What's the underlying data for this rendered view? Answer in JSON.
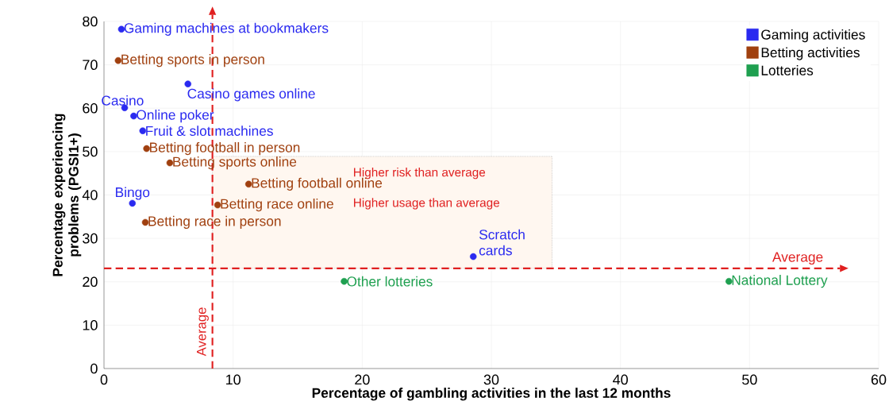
{
  "chart_data": {
    "type": "scatter",
    "xlabel": "Percentage of gambling activities in the last 12 months",
    "ylabel": "Percentage experiencing problems (PGSI1+)",
    "xlim": [
      0,
      60
    ],
    "ylim": [
      0,
      80
    ],
    "xticks": [
      0,
      10,
      20,
      30,
      40,
      50,
      60
    ],
    "yticks": [
      0,
      10,
      20,
      30,
      40,
      50,
      60,
      70,
      80
    ],
    "grid": true,
    "legend": "top right",
    "marker": "circle",
    "series": [
      {
        "name": "Gaming activities",
        "color": "#2a2af0",
        "x": [
          1.35,
          6.5,
          1.6,
          2.3,
          3.0,
          2.2,
          28.6
        ],
        "values": [
          78.2,
          65.6,
          60.1,
          58.2,
          54.8,
          38.1,
          25.8
        ],
        "value_labels": [
          "Gaming machines at bookmakers",
          "Casino games online",
          "Casino",
          "Online poker",
          "Fruit & slot machines",
          "Bingo",
          "Scratch cards"
        ]
      },
      {
        "name": "Betting activities",
        "color": "#a0400f",
        "x": [
          1.1,
          3.3,
          5.1,
          11.2,
          8.8,
          3.2
        ],
        "values": [
          71.0,
          50.7,
          47.4,
          42.5,
          37.7,
          33.7
        ],
        "value_labels": [
          "Betting sports in person",
          "Betting football in person",
          "Betting sports online",
          "Betting football online",
          "Betting race online",
          "Betting race in person"
        ]
      },
      {
        "name": "Lotteries",
        "color": "#1fa050",
        "x": [
          18.6,
          48.4
        ],
        "values": [
          20.1,
          20.1
        ],
        "value_labels": [
          "Other lotteries",
          "National Lottery"
        ]
      }
    ],
    "ref_lines": [
      {
        "axis": "x",
        "value": 8.4,
        "label": "Average",
        "color": "#e02020",
        "line_style": "dashed"
      },
      {
        "axis": "y",
        "value": 23.1,
        "label": "Average",
        "color": "#e02020",
        "line_style": "dashed"
      }
    ],
    "annotations": [
      "Higher risk than average",
      "Higher usage than average"
    ]
  }
}
